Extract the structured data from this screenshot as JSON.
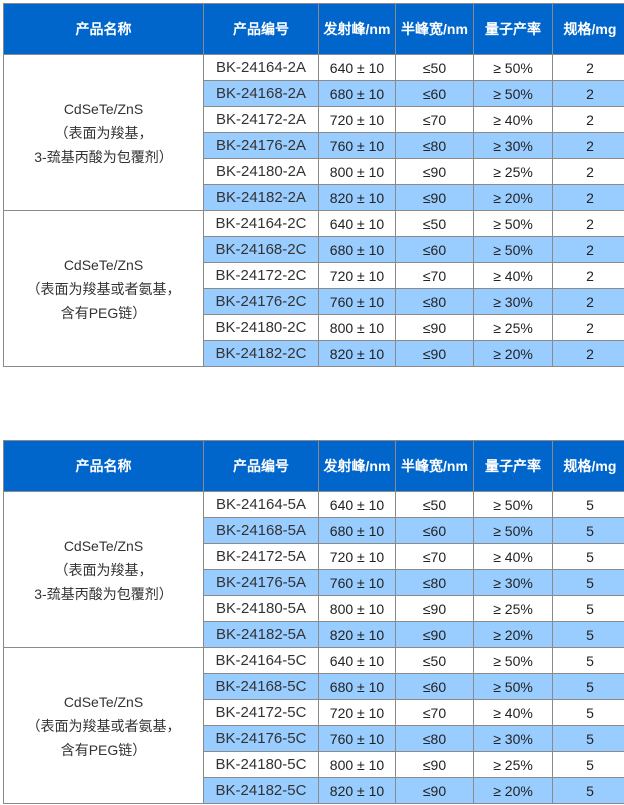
{
  "colors": {
    "header": "#0066cc",
    "alt_row": "#99ccff"
  },
  "headers": [
    "产品名称",
    "产品编号",
    "发射峰/nm",
    "半峰宽/nm",
    "量子产率",
    "规格/mg"
  ],
  "tables": [
    {
      "groups": [
        {
          "name": [
            "CdSeTe/ZnS",
            "（表面为羧基，",
            "3-巯基丙酸为包覆剂）"
          ],
          "rows": [
            [
              "BK-24164-2A",
              "640 ± 10",
              "≤50",
              "≥ 50%",
              "2"
            ],
            [
              "BK-24168-2A",
              "680 ± 10",
              "≤60",
              "≥ 50%",
              "2"
            ],
            [
              "BK-24172-2A",
              "720 ± 10",
              "≤70",
              "≥ 40%",
              "2"
            ],
            [
              "BK-24176-2A",
              "760 ± 10",
              "≤80",
              "≥ 30%",
              "2"
            ],
            [
              "BK-24180-2A",
              "800 ± 10",
              "≤90",
              "≥ 25%",
              "2"
            ],
            [
              "BK-24182-2A",
              "820 ± 10",
              "≤90",
              "≥ 20%",
              "2"
            ]
          ]
        },
        {
          "name": [
            "CdSeTe/ZnS",
            "（表面为羧基或者氨基，",
            "含有PEG链）"
          ],
          "rows": [
            [
              "BK-24164-2C",
              "640 ± 10",
              "≤50",
              "≥ 50%",
              "2"
            ],
            [
              "BK-24168-2C",
              "680 ± 10",
              "≤60",
              "≥ 50%",
              "2"
            ],
            [
              "BK-24172-2C",
              "720 ± 10",
              "≤70",
              "≥ 40%",
              "2"
            ],
            [
              "BK-24176-2C",
              "760 ± 10",
              "≤80",
              "≥ 30%",
              "2"
            ],
            [
              "BK-24180-2C",
              "800 ± 10",
              "≤90",
              "≥ 25%",
              "2"
            ],
            [
              "BK-24182-2C",
              "820 ± 10",
              "≤90",
              "≥ 20%",
              "2"
            ]
          ]
        }
      ]
    },
    {
      "groups": [
        {
          "name": [
            "CdSeTe/ZnS",
            "（表面为羧基，",
            "3-巯基丙酸为包覆剂）"
          ],
          "rows": [
            [
              "BK-24164-5A",
              "640 ± 10",
              "≤50",
              "≥ 50%",
              "5"
            ],
            [
              "BK-24168-5A",
              "680 ± 10",
              "≤60",
              "≥ 50%",
              "5"
            ],
            [
              "BK-24172-5A",
              "720 ± 10",
              "≤70",
              "≥ 40%",
              "5"
            ],
            [
              "BK-24176-5A",
              "760 ± 10",
              "≤80",
              "≥ 30%",
              "5"
            ],
            [
              "BK-24180-5A",
              "800 ± 10",
              "≤90",
              "≥ 25%",
              "5"
            ],
            [
              "BK-24182-5A",
              "820 ± 10",
              "≤90",
              "≥ 20%",
              "5"
            ]
          ]
        },
        {
          "name": [
            "CdSeTe/ZnS",
            "（表面为羧基或者氨基，",
            "含有PEG链）"
          ],
          "rows": [
            [
              "BK-24164-5C",
              "640 ± 10",
              "≤50",
              "≥ 50%",
              "5"
            ],
            [
              "BK-24168-5C",
              "680 ± 10",
              "≤60",
              "≥ 50%",
              "5"
            ],
            [
              "BK-24172-5C",
              "720 ± 10",
              "≤70",
              "≥ 40%",
              "5"
            ],
            [
              "BK-24176-5C",
              "760 ± 10",
              "≤80",
              "≥ 30%",
              "5"
            ],
            [
              "BK-24180-5C",
              "800 ± 10",
              "≤90",
              "≥ 25%",
              "5"
            ],
            [
              "BK-24182-5C",
              "820 ± 10",
              "≤90",
              "≥ 20%",
              "5"
            ]
          ]
        }
      ]
    }
  ]
}
